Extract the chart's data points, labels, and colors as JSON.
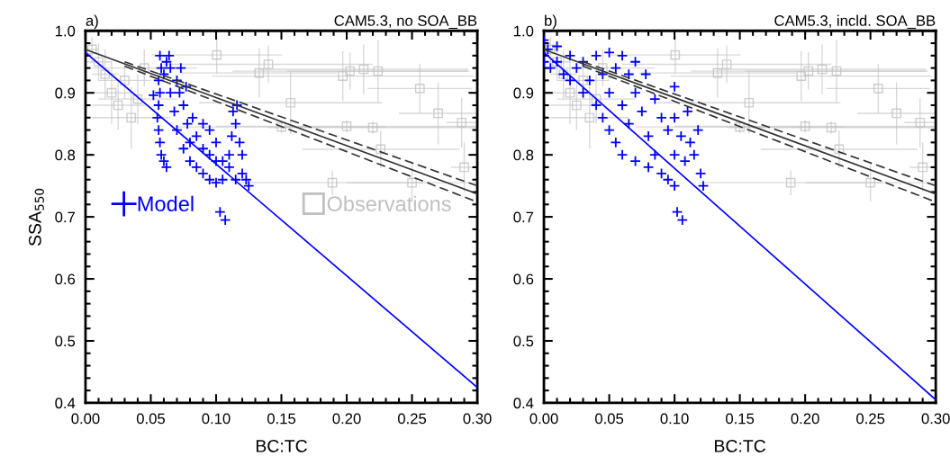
{
  "chart_data": [
    {
      "type": "scatter",
      "title": "a)",
      "subtitle": "CAM5.3, no SOA_BB",
      "xlabel": "BC:TC",
      "ylabel": "SSA$_{550}$",
      "xlim": [
        0,
        0.3
      ],
      "ylim": [
        0.4,
        1.0
      ],
      "xticks": [
        {
          "value": 0,
          "label": "0.00"
        },
        {
          "value": 0.05,
          "label": "0.05"
        },
        {
          "value": 0.1,
          "label": "0.10"
        },
        {
          "value": 0.15,
          "label": "0.15"
        },
        {
          "value": 0.2,
          "label": "0.20"
        },
        {
          "value": 0.25,
          "label": "0.25"
        },
        {
          "value": 0.3,
          "label": "0.30"
        }
      ],
      "yticks": [
        {
          "value": 0.4,
          "label": "0.4"
        },
        {
          "value": 0.5,
          "label": "0.5"
        },
        {
          "value": 0.6,
          "label": "0.6"
        },
        {
          "value": 0.7,
          "label": "0.7"
        },
        {
          "value": 0.8,
          "label": "0.8"
        },
        {
          "value": 0.9,
          "label": "0.9"
        },
        {
          "value": 1.0,
          "label": "1.0"
        }
      ],
      "grid": false,
      "legend": "center",
      "series": [
        {
          "name": "Observations",
          "marker": "square",
          "color": "#c0c0c0",
          "x": [
            0.005,
            0.01,
            0.015,
            0.02,
            0.025,
            0.03,
            0.035,
            0.04,
            0.045,
            0.1005,
            0.133,
            0.14,
            0.157,
            0.197,
            0.2025,
            0.213,
            0.224,
            0.256,
            0.27,
            0.288,
            0.226,
            0.29,
            0.189,
            0.25,
            0.15,
            0.2,
            0.22
          ],
          "values": [
            0.97,
            0.95,
            0.93,
            0.9,
            0.88,
            0.92,
            0.86,
            0.89,
            0.94,
            0.961,
            0.932,
            0.946,
            0.884,
            0.927,
            0.935,
            0.938,
            0.935,
            0.907,
            0.867,
            0.852,
            0.809,
            0.78,
            0.755,
            0.755,
            0.845,
            0.846,
            0.844
          ],
          "errors": [
            0.02,
            0.03,
            0.04,
            0.05,
            0.04,
            0.03,
            0.05,
            0.04,
            0.03,
            0.03,
            0.04,
            0.03,
            0.05,
            0.04,
            0.03,
            0.04,
            0.05,
            0.04,
            0.05,
            0.04,
            0.03,
            0.04,
            0.02,
            0.03,
            0.01,
            0.01,
            0.01
          ],
          "xerrors": [
            0.005,
            0.01,
            0.01,
            0.015,
            0.02,
            0.02,
            0.03,
            0.03,
            0.04,
            0.05,
            0.06,
            0.08,
            0.07,
            0.1,
            0.09,
            0.08,
            0.07,
            0.04,
            0.03,
            0.012,
            0.06,
            0.01,
            0.07,
            0.05,
            0.08,
            0.1,
            0.08
          ]
        },
        {
          "name": "Model",
          "marker": "cross",
          "color": "#0000ff",
          "x": [
            0.057,
            0.058,
            0.056,
            0.057,
            0.056,
            0.055,
            0.056,
            0.057,
            0.058,
            0.06,
            0.062,
            0.06,
            0.062,
            0.065,
            0.065,
            0.07,
            0.072,
            0.068,
            0.075,
            0.07,
            0.078,
            0.08,
            0.085,
            0.09,
            0.095,
            0.1,
            0.075,
            0.08,
            0.085,
            0.09,
            0.095,
            0.1,
            0.105,
            0.105,
            0.11,
            0.11,
            0.112,
            0.113,
            0.115,
            0.118,
            0.12,
            0.12,
            0.123,
            0.125,
            0.115,
            0.09,
            0.095,
            0.082,
            0.077,
            0.052,
            0.103,
            0.107,
            0.116,
            0.073,
            0.064,
            0.1
          ],
          "values": [
            0.96,
            0.94,
            0.92,
            0.9,
            0.88,
            0.86,
            0.84,
            0.82,
            0.8,
            0.79,
            0.78,
            0.93,
            0.95,
            0.94,
            0.9,
            0.92,
            0.9,
            0.87,
            0.88,
            0.84,
            0.85,
            0.82,
            0.83,
            0.81,
            0.8,
            0.79,
            0.81,
            0.79,
            0.78,
            0.77,
            0.76,
            0.755,
            0.76,
            0.79,
            0.78,
            0.8,
            0.83,
            0.87,
            0.85,
            0.82,
            0.8,
            0.77,
            0.76,
            0.75,
            0.76,
            0.85,
            0.84,
            0.86,
            0.91,
            0.896,
            0.708,
            0.695,
            0.88,
            0.94,
            0.96,
            0.82
          ]
        },
        {
          "type": "line",
          "marker": "none",
          "line_style": "solid",
          "color": "#0000ff",
          "x": [
            0,
            0.3
          ],
          "values": [
            0.965,
            0.425
          ]
        },
        {
          "type": "line",
          "marker": "none",
          "line_style": "solid",
          "color": "#333333",
          "x": [
            0,
            0.3
          ],
          "values": [
            0.97,
            0.737
          ]
        },
        {
          "type": "line",
          "marker": "none",
          "line_style": "dashed",
          "color": "#333333",
          "x": [
            0.03,
            0.3
          ],
          "values": [
            0.95,
            0.75
          ]
        },
        {
          "type": "line",
          "marker": "none",
          "line_style": "dashed",
          "color": "#333333",
          "x": [
            0.03,
            0.3
          ],
          "values": [
            0.943,
            0.724
          ]
        }
      ]
    },
    {
      "type": "scatter",
      "title": "b)",
      "subtitle": "CAM5.3, incld. SOA_BB",
      "xlabel": "BC:TC",
      "xlim": [
        0,
        0.3
      ],
      "ylim": [
        0.4,
        1.0
      ],
      "xticks": [
        {
          "value": 0,
          "label": "0.00"
        },
        {
          "value": 0.05,
          "label": "0.05"
        },
        {
          "value": 0.1,
          "label": "0.10"
        },
        {
          "value": 0.15,
          "label": "0.15"
        },
        {
          "value": 0.2,
          "label": "0.20"
        },
        {
          "value": 0.25,
          "label": "0.25"
        },
        {
          "value": 0.3,
          "label": "0.30"
        }
      ],
      "yticks": [
        {
          "value": 0.4,
          "label": "0.4"
        },
        {
          "value": 0.5,
          "label": "0.5"
        },
        {
          "value": 0.6,
          "label": "0.6"
        },
        {
          "value": 0.7,
          "label": "0.7"
        },
        {
          "value": 0.8,
          "label": "0.8"
        },
        {
          "value": 0.9,
          "label": "0.9"
        },
        {
          "value": 1.0,
          "label": "1.0"
        }
      ],
      "grid": false,
      "series": [
        {
          "marker": "square",
          "color": "#c0c0c0",
          "x": [
            0.005,
            0.01,
            0.015,
            0.02,
            0.025,
            0.03,
            0.035,
            0.04,
            0.045,
            0.1005,
            0.133,
            0.14,
            0.157,
            0.197,
            0.2025,
            0.213,
            0.224,
            0.256,
            0.27,
            0.288,
            0.226,
            0.29,
            0.189,
            0.25,
            0.15,
            0.2,
            0.22
          ],
          "values": [
            0.97,
            0.95,
            0.93,
            0.9,
            0.88,
            0.92,
            0.86,
            0.89,
            0.94,
            0.961,
            0.932,
            0.946,
            0.884,
            0.927,
            0.935,
            0.938,
            0.935,
            0.907,
            0.867,
            0.852,
            0.809,
            0.78,
            0.755,
            0.755,
            0.845,
            0.846,
            0.844
          ],
          "errors": [
            0.02,
            0.03,
            0.04,
            0.05,
            0.04,
            0.03,
            0.05,
            0.04,
            0.03,
            0.03,
            0.04,
            0.03,
            0.05,
            0.04,
            0.03,
            0.04,
            0.05,
            0.04,
            0.05,
            0.04,
            0.03,
            0.04,
            0.02,
            0.03,
            0.01,
            0.01,
            0.01
          ],
          "xerrors": [
            0.005,
            0.01,
            0.01,
            0.015,
            0.02,
            0.02,
            0.03,
            0.03,
            0.04,
            0.05,
            0.06,
            0.08,
            0.07,
            0.1,
            0.09,
            0.08,
            0.07,
            0.04,
            0.03,
            0.012,
            0.06,
            0.01,
            0.07,
            0.05,
            0.08,
            0.1,
            0.08
          ]
        },
        {
          "marker": "cross",
          "color": "#0000ff",
          "x": [
            0.0,
            0.003,
            0.0,
            0.005,
            0.01,
            0.01,
            0.015,
            0.02,
            0.02,
            0.025,
            0.03,
            0.03,
            0.035,
            0.04,
            0.04,
            0.045,
            0.045,
            0.05,
            0.05,
            0.05,
            0.055,
            0.055,
            0.06,
            0.06,
            0.06,
            0.065,
            0.065,
            0.07,
            0.07,
            0.07,
            0.075,
            0.078,
            0.08,
            0.08,
            0.085,
            0.085,
            0.09,
            0.09,
            0.095,
            0.095,
            0.1,
            0.1,
            0.1,
            0.105,
            0.108,
            0.11,
            0.112,
            0.115,
            0.118,
            0.12,
            0.122,
            0.1,
            0.102,
            0.106
          ],
          "values": [
            0.985,
            0.97,
            0.95,
            0.94,
            0.975,
            0.95,
            0.93,
            0.96,
            0.92,
            0.94,
            0.9,
            0.95,
            0.92,
            0.96,
            0.88,
            0.93,
            0.86,
            0.965,
            0.9,
            0.84,
            0.94,
            0.82,
            0.96,
            0.88,
            0.8,
            0.93,
            0.85,
            0.95,
            0.9,
            0.79,
            0.87,
            0.93,
            0.83,
            0.78,
            0.89,
            0.8,
            0.86,
            0.77,
            0.84,
            0.76,
            0.86,
            0.8,
            0.75,
            0.83,
            0.79,
            0.87,
            0.82,
            0.8,
            0.84,
            0.77,
            0.75,
            0.91,
            0.708,
            0.695
          ]
        },
        {
          "type": "line",
          "marker": "none",
          "line_style": "solid",
          "color": "#0000ff",
          "x": [
            0,
            0.3
          ],
          "values": [
            0.965,
            0.405
          ]
        },
        {
          "type": "line",
          "marker": "none",
          "line_style": "solid",
          "color": "#333333",
          "x": [
            0,
            0.3
          ],
          "values": [
            0.97,
            0.737
          ]
        },
        {
          "type": "line",
          "marker": "none",
          "line_style": "dashed",
          "color": "#333333",
          "x": [
            0.03,
            0.3
          ],
          "values": [
            0.95,
            0.75
          ]
        },
        {
          "type": "line",
          "marker": "none",
          "line_style": "dashed",
          "color": "#333333",
          "x": [
            0.03,
            0.3
          ],
          "values": [
            0.943,
            0.724
          ]
        }
      ]
    }
  ]
}
